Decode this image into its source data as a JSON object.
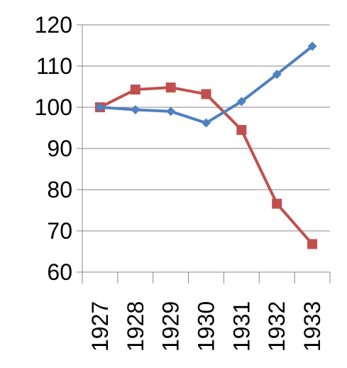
{
  "chart_data": {
    "type": "line",
    "title": "",
    "xlabel": "",
    "ylabel": "",
    "categories": [
      "1927",
      "1928",
      "1929",
      "1930",
      "1931",
      "1932",
      "1933"
    ],
    "ylim": [
      60,
      120
    ],
    "yticks": [
      "60",
      "70",
      "80",
      "90",
      "100",
      "110",
      "120"
    ],
    "grid": true,
    "legend": "none",
    "series": [
      {
        "color": "#4F81BD",
        "marker": "diamond",
        "values": [
          100,
          99.4,
          99.0,
          96.2,
          101.4,
          108.0,
          114.8
        ]
      },
      {
        "color": "#C0504D",
        "marker": "square",
        "values": [
          100,
          104.3,
          104.8,
          103.2,
          94.5,
          76.6,
          66.8
        ]
      }
    ]
  }
}
